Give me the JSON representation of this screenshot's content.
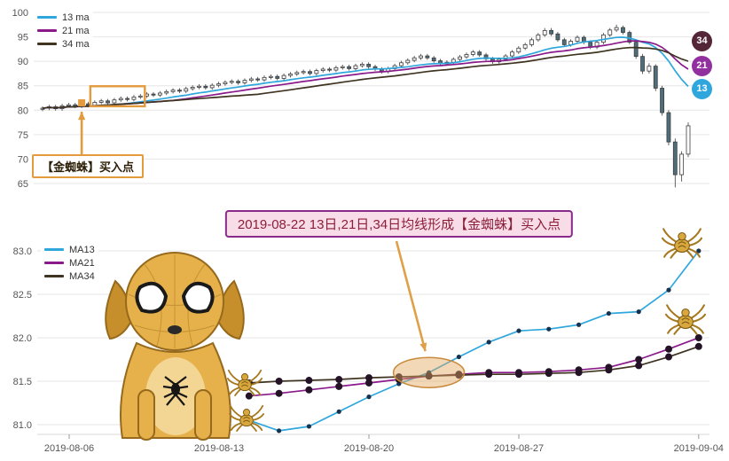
{
  "chart_data": [
    {
      "type": "candlestick",
      "title": "",
      "legend": [
        "13 ma",
        "21 ma",
        "34 ma"
      ],
      "legend_position": "top-left",
      "series_colors": [
        "#2fa7dd",
        "#8a1a8a",
        "#3e3420"
      ],
      "ma_periods": [
        13,
        21,
        34
      ],
      "down_color": "#4e6e7c",
      "grid": true,
      "y_ticks": [
        100,
        95,
        90,
        85,
        80,
        75,
        70,
        65
      ],
      "ylim": [
        63.5,
        101.5
      ],
      "end_labels": [
        {
          "text": "34",
          "color": "#542437"
        },
        {
          "text": "21",
          "color": "#93309f"
        },
        {
          "text": "13",
          "color": "#2fa7dd"
        }
      ],
      "annotation": {
        "text": "【金蜘蛛】买入点",
        "color": "#e39b3d"
      },
      "highlight": {
        "buy_candle_index": 6,
        "buy_price": 81.5,
        "box_candle_range": [
          8,
          15
        ],
        "box_price_range": [
          80.8,
          84.9
        ]
      },
      "candles_ohlc": [
        [
          80.2,
          80.8,
          79.8,
          80.4
        ],
        [
          80.4,
          81.1,
          80.0,
          80.7
        ],
        [
          80.7,
          81.1,
          79.9,
          80.3
        ],
        [
          80.3,
          81.3,
          79.9,
          80.9
        ],
        [
          80.9,
          81.5,
          80.5,
          81.1
        ],
        [
          81.1,
          81.5,
          80.4,
          80.8
        ],
        [
          80.8,
          81.7,
          80.4,
          81.3
        ],
        [
          81.3,
          81.7,
          80.6,
          81.0
        ],
        [
          81.0,
          82.0,
          80.6,
          81.6
        ],
        [
          81.6,
          82.3,
          81.2,
          81.9
        ],
        [
          81.9,
          82.3,
          81.1,
          81.5
        ],
        [
          81.5,
          82.5,
          81.1,
          82.1
        ],
        [
          82.1,
          82.8,
          81.7,
          82.4
        ],
        [
          82.4,
          82.8,
          81.8,
          82.2
        ],
        [
          82.2,
          83.1,
          81.8,
          82.7
        ],
        [
          82.7,
          83.3,
          82.3,
          82.9
        ],
        [
          82.9,
          83.7,
          82.5,
          83.3
        ],
        [
          83.3,
          83.7,
          82.7,
          83.1
        ],
        [
          83.1,
          83.9,
          82.7,
          83.5
        ],
        [
          83.5,
          84.2,
          83.1,
          83.8
        ],
        [
          83.8,
          84.5,
          83.4,
          84.1
        ],
        [
          84.1,
          84.5,
          83.5,
          83.9
        ],
        [
          83.9,
          84.8,
          83.5,
          84.4
        ],
        [
          84.4,
          85.1,
          84.0,
          84.7
        ],
        [
          84.7,
          85.3,
          84.3,
          84.9
        ],
        [
          84.9,
          85.3,
          84.2,
          84.6
        ],
        [
          84.6,
          85.5,
          84.2,
          85.1
        ],
        [
          85.1,
          85.8,
          84.7,
          85.4
        ],
        [
          85.4,
          86.1,
          85.0,
          85.7
        ],
        [
          85.7,
          86.3,
          85.3,
          85.9
        ],
        [
          85.9,
          86.3,
          85.2,
          85.6
        ],
        [
          85.6,
          86.5,
          85.2,
          86.1
        ],
        [
          86.1,
          86.8,
          85.7,
          86.4
        ],
        [
          86.4,
          86.8,
          85.8,
          86.2
        ],
        [
          86.2,
          87.1,
          85.8,
          86.7
        ],
        [
          86.7,
          87.3,
          86.3,
          86.9
        ],
        [
          86.9,
          87.3,
          86.1,
          86.5
        ],
        [
          86.5,
          87.5,
          86.1,
          87.1
        ],
        [
          87.1,
          87.8,
          86.7,
          87.4
        ],
        [
          87.4,
          88.1,
          87.0,
          87.7
        ],
        [
          87.7,
          88.3,
          87.3,
          87.9
        ],
        [
          87.9,
          88.3,
          87.1,
          87.5
        ],
        [
          87.5,
          88.5,
          87.1,
          88.1
        ],
        [
          88.1,
          88.8,
          87.7,
          88.4
        ],
        [
          88.4,
          88.8,
          87.8,
          88.2
        ],
        [
          88.2,
          89.1,
          87.8,
          88.7
        ],
        [
          88.7,
          89.3,
          88.3,
          88.9
        ],
        [
          88.9,
          89.3,
          88.1,
          88.5
        ],
        [
          88.5,
          89.5,
          88.1,
          89.1
        ],
        [
          89.1,
          89.8,
          88.7,
          89.4
        ],
        [
          89.4,
          89.8,
          88.5,
          88.9
        ],
        [
          88.9,
          89.3,
          88.0,
          88.4
        ],
        [
          88.4,
          88.8,
          87.5,
          87.9
        ],
        [
          87.9,
          88.9,
          87.5,
          88.5
        ],
        [
          88.5,
          89.5,
          88.1,
          89.1
        ],
        [
          89.1,
          90.1,
          88.7,
          89.7
        ],
        [
          89.7,
          90.6,
          89.3,
          90.2
        ],
        [
          90.2,
          91.1,
          89.8,
          90.7
        ],
        [
          90.7,
          91.5,
          90.3,
          91.1
        ],
        [
          91.1,
          91.5,
          90.3,
          90.7
        ],
        [
          90.7,
          91.1,
          89.7,
          90.1
        ],
        [
          90.1,
          90.5,
          89.1,
          89.5
        ],
        [
          89.5,
          90.2,
          89.1,
          89.8
        ],
        [
          89.8,
          90.8,
          89.4,
          90.4
        ],
        [
          90.4,
          91.3,
          90.0,
          90.9
        ],
        [
          90.9,
          91.8,
          90.5,
          91.4
        ],
        [
          91.4,
          92.3,
          91.0,
          91.9
        ],
        [
          91.9,
          92.3,
          90.9,
          91.3
        ],
        [
          91.3,
          91.7,
          90.1,
          90.5
        ],
        [
          90.5,
          90.9,
          89.5,
          89.9
        ],
        [
          89.9,
          90.8,
          89.5,
          90.4
        ],
        [
          90.4,
          91.5,
          90.0,
          91.1
        ],
        [
          91.1,
          92.3,
          90.7,
          91.9
        ],
        [
          91.9,
          93.1,
          91.5,
          92.7
        ],
        [
          92.7,
          93.8,
          92.3,
          93.4
        ],
        [
          93.4,
          94.8,
          93.0,
          94.4
        ],
        [
          94.4,
          95.8,
          94.0,
          95.4
        ],
        [
          95.4,
          96.8,
          95.0,
          96.3
        ],
        [
          96.3,
          96.8,
          95.2,
          95.6
        ],
        [
          95.6,
          96.0,
          94.0,
          94.4
        ],
        [
          94.4,
          94.8,
          93.0,
          93.4
        ],
        [
          93.4,
          94.5,
          93.0,
          94.1
        ],
        [
          94.1,
          95.3,
          93.7,
          94.9
        ],
        [
          94.9,
          95.3,
          93.5,
          93.9
        ],
        [
          93.9,
          94.3,
          92.5,
          92.9
        ],
        [
          92.9,
          94.3,
          92.5,
          93.9
        ],
        [
          93.9,
          95.8,
          93.5,
          95.4
        ],
        [
          95.4,
          96.8,
          95.0,
          96.4
        ],
        [
          96.4,
          97.5,
          96.0,
          96.9
        ],
        [
          96.9,
          97.3,
          95.5,
          95.9
        ],
        [
          95.9,
          96.3,
          93.5,
          93.9
        ],
        [
          93.9,
          94.3,
          90.5,
          91.0
        ],
        [
          91.0,
          91.5,
          87.4,
          88.0
        ],
        [
          88.0,
          89.6,
          87.5,
          89.0
        ],
        [
          89.0,
          89.4,
          83.9,
          84.5
        ],
        [
          84.5,
          85.0,
          78.9,
          79.5
        ],
        [
          79.5,
          80.0,
          72.8,
          73.5
        ],
        [
          73.5,
          74.2,
          64.2,
          66.8
        ],
        [
          66.8,
          71.6,
          65.4,
          71.0
        ],
        [
          71.0,
          77.5,
          70.4,
          76.8
        ]
      ]
    },
    {
      "type": "line",
      "title": "",
      "legend": [
        "MA13",
        "MA21",
        "MA34"
      ],
      "legend_position": "top-left",
      "grid": true,
      "y_ticks": [
        "83.0",
        "82.5",
        "82.0",
        "81.5",
        "81.0"
      ],
      "ylim": [
        80.8,
        83.2
      ],
      "x_tick_labels": [
        "2019-08-06",
        "2019-08-13",
        "2019-08-20",
        "2019-08-27",
        "2019-09-04"
      ],
      "x_tick_slots": [
        0,
        5,
        10,
        15,
        21
      ],
      "x_total_slots": 22,
      "x_start_slot": 6,
      "x_dates": [
        "08-14",
        "08-15",
        "08-16",
        "08-19",
        "08-20",
        "08-21",
        "08-22",
        "08-23",
        "08-26",
        "08-27",
        "08-28",
        "08-29",
        "08-30",
        "09-02",
        "09-03",
        "09-04"
      ],
      "series": [
        {
          "name": "MA13",
          "color": "#2fa7dd",
          "marker_color": "#16324f",
          "marker_r": 2.6,
          "values": [
            81.05,
            80.93,
            80.98,
            81.15,
            81.32,
            81.47,
            81.6,
            81.78,
            81.95,
            82.08,
            82.1,
            82.15,
            82.28,
            82.3,
            82.55,
            83.0
          ]
        },
        {
          "name": "MA21",
          "color": "#8a1a8a",
          "marker_color": "#241326",
          "marker_r": 4,
          "values": [
            81.33,
            81.36,
            81.4,
            81.44,
            81.48,
            81.52,
            81.56,
            81.58,
            81.6,
            81.6,
            81.61,
            81.63,
            81.66,
            81.75,
            81.87,
            82.0
          ]
        },
        {
          "name": "MA34",
          "color": "#3e3420",
          "marker_color": "#241326",
          "marker_r": 4,
          "values": [
            81.48,
            81.5,
            81.51,
            81.52,
            81.54,
            81.55,
            81.56,
            81.57,
            81.58,
            81.58,
            81.59,
            81.6,
            81.63,
            81.68,
            81.78,
            81.9
          ]
        }
      ],
      "annotation": {
        "text": "2019-08-22 13日,21日,34日均线形成【金蜘蛛】买入点",
        "crossover_slot": 12,
        "crossover_value": 81.6
      },
      "highlight_color": "#e2a95f"
    }
  ]
}
